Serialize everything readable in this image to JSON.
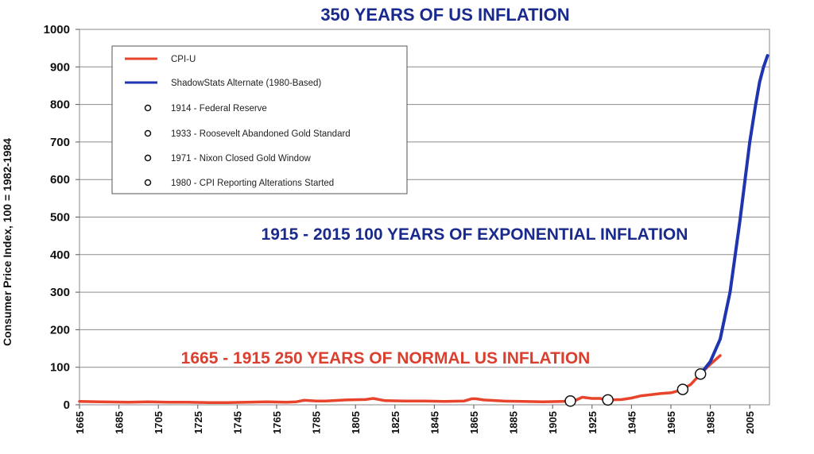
{
  "chart_data": {
    "type": "line",
    "title": "350 YEARS OF US INFLATION",
    "ylabel": "Consumer Price Index, 100 = 1982-1984",
    "xlabel": "",
    "ylim": [
      0,
      1000
    ],
    "xlim": [
      1665,
      2015
    ],
    "yticks": [
      0,
      100,
      200,
      300,
      400,
      500,
      600,
      700,
      800,
      900,
      1000
    ],
    "xticks": [
      1665,
      1685,
      1705,
      1725,
      1745,
      1765,
      1785,
      1805,
      1825,
      1845,
      1865,
      1885,
      1905,
      1925,
      1945,
      1965,
      1985,
      2005
    ],
    "grid": "horizontal",
    "legend_position": "top-left",
    "colors": {
      "cpi": "#e8432b",
      "shadow": "#1f35b0",
      "title": "#1a2a8c",
      "red_text": "#d9402f"
    },
    "series": [
      {
        "name": "CPI-U",
        "color": "#e8432b",
        "x": [
          1665,
          1675,
          1690,
          1700,
          1710,
          1720,
          1730,
          1740,
          1750,
          1760,
          1770,
          1775,
          1779,
          1785,
          1790,
          1800,
          1810,
          1814,
          1820,
          1830,
          1840,
          1850,
          1860,
          1864,
          1866,
          1870,
          1880,
          1890,
          1900,
          1910,
          1914,
          1917,
          1920,
          1925,
          1929,
          1933,
          1940,
          1945,
          1950,
          1955,
          1960,
          1965,
          1970,
          1975,
          1980,
          1985,
          1990
        ],
        "y": [
          9,
          8,
          7,
          8,
          7,
          7,
          6,
          6,
          7,
          8,
          7,
          8,
          12,
          10,
          10,
          13,
          14,
          17,
          11,
          10,
          10,
          9,
          10,
          16,
          16,
          13,
          10,
          9,
          8,
          9,
          10,
          13,
          20,
          17,
          17,
          13,
          14,
          18,
          24,
          27,
          30,
          32,
          39,
          54,
          82,
          108,
          131
        ]
      },
      {
        "name": "ShadowStats Alternate (1980-Based)",
        "color": "#1f35b0",
        "x": [
          1980,
          1985,
          1990,
          1995,
          2000,
          2005,
          2008,
          2010,
          2012,
          2014
        ],
        "y": [
          82,
          115,
          175,
          300,
          490,
          700,
          800,
          860,
          900,
          930
        ]
      }
    ],
    "markers": [
      {
        "label": "1914 - Federal Reserve",
        "x": 1914,
        "y": 10
      },
      {
        "label": "1933 - Roosevelt Abandoned Gold Standard",
        "x": 1933,
        "y": 13
      },
      {
        "label": "1971 - Nixon Closed Gold Window",
        "x": 1971,
        "y": 41
      },
      {
        "label": "1980 - CPI Reporting Alterations Started",
        "x": 1980,
        "y": 82
      }
    ],
    "annotations": [
      {
        "text": "1915 - 2015  100 YEARS OF EXPONENTIAL INFLATION",
        "color": "#1a2a8c"
      },
      {
        "text": "1665 - 1915  250 YEARS OF NORMAL US INFLATION",
        "color": "#d9402f"
      }
    ]
  }
}
